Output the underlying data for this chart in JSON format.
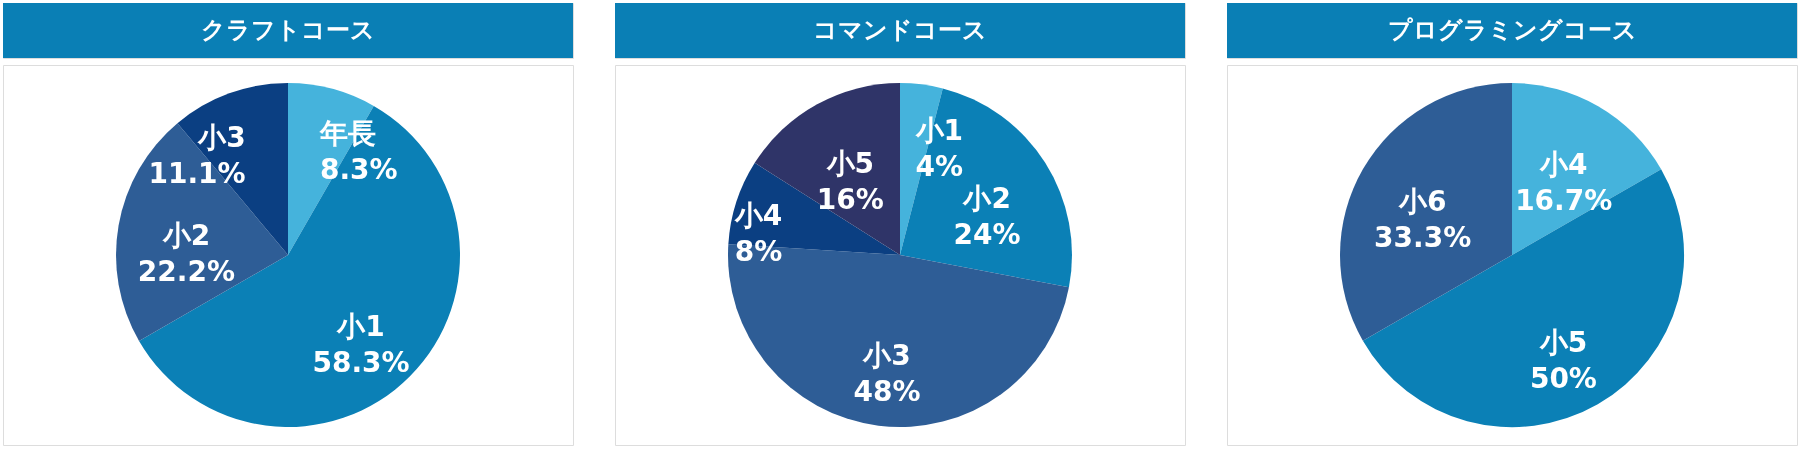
{
  "chart_data": [
    {
      "type": "pie",
      "title": "クラフトコース",
      "categories": [
        "年長",
        "小1",
        "小2",
        "小3"
      ],
      "values": [
        8.3,
        58.3,
        22.2,
        11.1
      ],
      "value_labels": [
        "8.3%",
        "58.3%",
        "22.2%",
        "11.1%"
      ],
      "colors": [
        "#45b3dc",
        "#0b80b6",
        "#2e5d96",
        "#0b3f82"
      ],
      "legend": false
    },
    {
      "type": "pie",
      "title": "コマンドコース",
      "categories": [
        "小1",
        "小2",
        "小3",
        "小4",
        "小5"
      ],
      "values": [
        4,
        24,
        48,
        8,
        16
      ],
      "value_labels": [
        "4%",
        "24%",
        "48%",
        "8%",
        "16%"
      ],
      "colors": [
        "#45b3dc",
        "#0b80b6",
        "#2e5d96",
        "#0b3f82",
        "#2f3468"
      ],
      "legend": false
    },
    {
      "type": "pie",
      "title": "プログラミングコース",
      "categories": [
        "小4",
        "小5",
        "小6"
      ],
      "values": [
        16.7,
        50,
        33.3
      ],
      "value_labels": [
        "16.7%",
        "50%",
        "33.3%"
      ],
      "colors": [
        "#45b3dc",
        "#0b80b6",
        "#2e5d96"
      ],
      "legend": false
    }
  ]
}
